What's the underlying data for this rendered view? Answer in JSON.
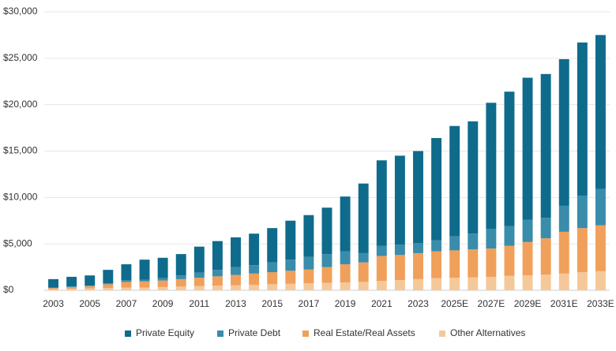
{
  "chart_data": {
    "type": "stacked_bar",
    "categories": [
      "2003",
      null,
      "2005",
      null,
      "2007",
      null,
      "2009",
      null,
      "2011",
      null,
      "2013",
      null,
      "2015",
      null,
      "2017",
      null,
      "2019",
      null,
      "2021",
      null,
      "2023",
      null,
      "2025E",
      null,
      "2027E",
      null,
      "2029E",
      null,
      "2031E",
      null,
      "2033E"
    ],
    "series": [
      {
        "name": "Private Equity",
        "color": "#0f6b8c",
        "values": [
          900,
          1050,
          1100,
          1450,
          1700,
          2150,
          2200,
          2300,
          2800,
          3100,
          3200,
          3400,
          3700,
          4200,
          4500,
          5000,
          5900,
          7500,
          9200,
          9600,
          9900,
          11000,
          11900,
          12100,
          13600,
          14500,
          15300,
          15500,
          15800,
          16500,
          16600
        ]
      },
      {
        "name": "Private Debt",
        "color": "#3a8cab",
        "values": [
          50,
          50,
          50,
          100,
          200,
          200,
          250,
          400,
          550,
          700,
          850,
          900,
          1050,
          1200,
          1350,
          1400,
          1400,
          1000,
          1100,
          1100,
          1100,
          1200,
          1500,
          1700,
          2100,
          2100,
          2400,
          2200,
          2800,
          3500,
          3900
        ]
      },
      {
        "name": "Real Estate/Real Assets",
        "color": "#f0a05a",
        "values": [
          150,
          200,
          250,
          400,
          600,
          650,
          700,
          800,
          900,
          1000,
          1100,
          1200,
          1300,
          1400,
          1500,
          1700,
          1950,
          2100,
          2700,
          2700,
          2800,
          2900,
          2950,
          3000,
          3050,
          3250,
          3600,
          3900,
          4500,
          4750,
          4950
        ]
      },
      {
        "name": "Other Alternatives",
        "color": "#f5c89a",
        "values": [
          100,
          150,
          200,
          250,
          300,
          300,
          350,
          400,
          450,
          500,
          550,
          600,
          650,
          700,
          750,
          800,
          850,
          900,
          1000,
          1100,
          1200,
          1300,
          1350,
          1400,
          1450,
          1550,
          1600,
          1700,
          1800,
          1950,
          2050
        ]
      }
    ],
    "ylim": [
      0,
      30000
    ],
    "yticks": [
      {
        "value": 0,
        "label": "$0"
      },
      {
        "value": 5000,
        "label": "$5,000"
      },
      {
        "value": 10000,
        "label": "$10,000"
      },
      {
        "value": 15000,
        "label": "$15,000"
      },
      {
        "value": 20000,
        "label": "$20,000"
      },
      {
        "value": 25000,
        "label": "$25,000"
      },
      {
        "value": 30000,
        "label": "$30,000"
      }
    ],
    "grid": true,
    "legend": "bottom"
  }
}
